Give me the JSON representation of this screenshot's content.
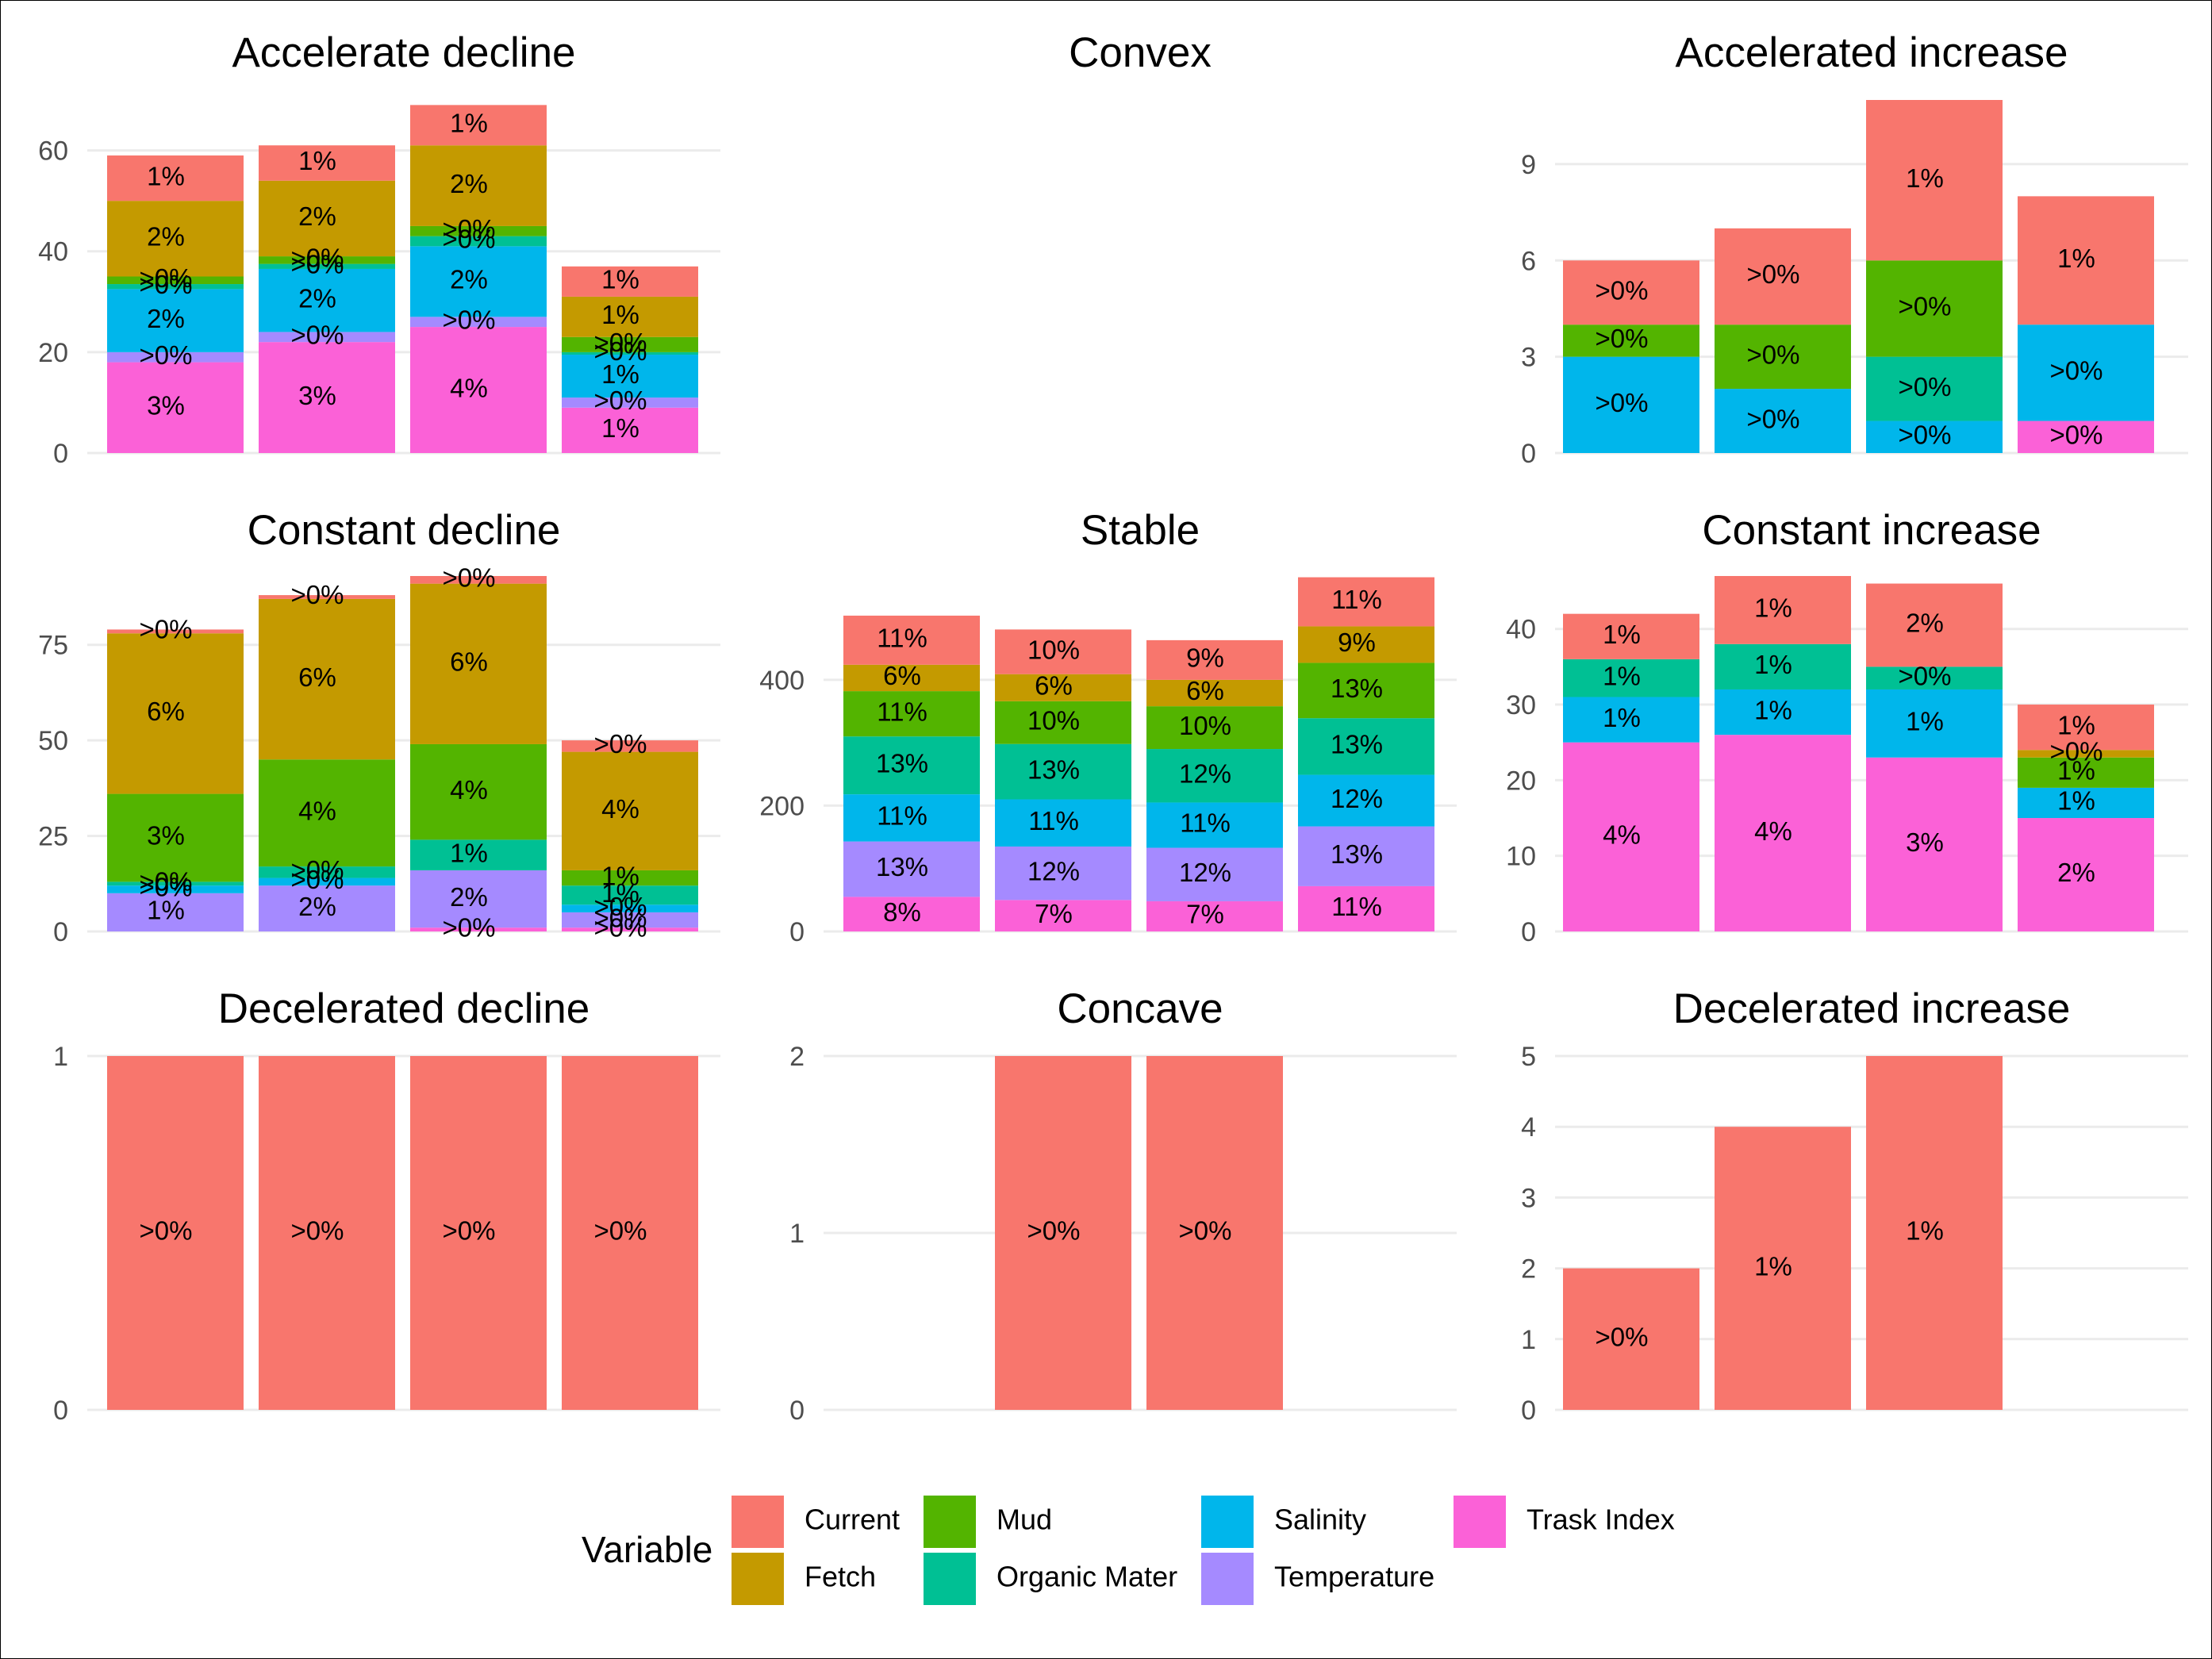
{
  "colors": {
    "Current": "#F8766D",
    "Fetch": "#C49A00",
    "Mud": "#53B400",
    "Organic Mater": "#00C094",
    "Salinity": "#00B6EB",
    "Temperature": "#A58AFF",
    "Trask Index": "#FB61D7"
  },
  "legend": {
    "title": "Variable",
    "items": [
      "Current",
      "Fetch",
      "Mud",
      "Organic Mater",
      "Salinity",
      "Temperature",
      "Trask Index"
    ]
  },
  "chart_data": [
    {
      "type": "bar",
      "stacked": true,
      "title": "Accelerate decline",
      "ylim": [
        0,
        70
      ],
      "yticks": [
        0,
        20,
        40,
        60
      ],
      "grid": true,
      "bars": [
        {
          "segments": [
            {
              "variable": "Trask Index",
              "value": 18,
              "label": "3%"
            },
            {
              "variable": "Temperature",
              "value": 2,
              "label": ">0%"
            },
            {
              "variable": "Salinity",
              "value": 12.5,
              "label": "2%"
            },
            {
              "variable": "Organic Mater",
              "value": 1,
              "label": ">0%"
            },
            {
              "variable": "Mud",
              "value": 1.5,
              "label": ">0%"
            },
            {
              "variable": "Fetch",
              "value": 15,
              "label": "2%"
            },
            {
              "variable": "Current",
              "value": 9,
              "label": "1%"
            }
          ]
        },
        {
          "segments": [
            {
              "variable": "Trask Index",
              "value": 22,
              "label": "3%"
            },
            {
              "variable": "Temperature",
              "value": 2,
              "label": ">0%"
            },
            {
              "variable": "Salinity",
              "value": 12.5,
              "label": "2%"
            },
            {
              "variable": "Organic Mater",
              "value": 1,
              "label": ">0%"
            },
            {
              "variable": "Mud",
              "value": 1.5,
              "label": ">0%"
            },
            {
              "variable": "Fetch",
              "value": 15,
              "label": "2%"
            },
            {
              "variable": "Current",
              "value": 7,
              "label": "1%"
            }
          ]
        },
        {
          "segments": [
            {
              "variable": "Trask Index",
              "value": 25,
              "label": "4%"
            },
            {
              "variable": "Temperature",
              "value": 2,
              "label": ">0%"
            },
            {
              "variable": "Salinity",
              "value": 14,
              "label": "2%"
            },
            {
              "variable": "Organic Mater",
              "value": 2,
              "label": ">0%"
            },
            {
              "variable": "Mud",
              "value": 2,
              "label": ">0%"
            },
            {
              "variable": "Fetch",
              "value": 16,
              "label": "2%"
            },
            {
              "variable": "Current",
              "value": 8,
              "label": "1%"
            }
          ]
        },
        {
          "segments": [
            {
              "variable": "Trask Index",
              "value": 9,
              "label": "1%"
            },
            {
              "variable": "Temperature",
              "value": 2,
              "label": ">0%"
            },
            {
              "variable": "Salinity",
              "value": 8.5,
              "label": "1%"
            },
            {
              "variable": "Organic Mater",
              "value": 0.5,
              "label": ">0%"
            },
            {
              "variable": "Mud",
              "value": 3,
              "label": ">0%"
            },
            {
              "variable": "Fetch",
              "value": 8,
              "label": "1%"
            },
            {
              "variable": "Current",
              "value": 6,
              "label": "1%"
            }
          ]
        }
      ]
    },
    {
      "type": "bar",
      "stacked": true,
      "title": "Convex",
      "ylim": null,
      "yticks": [],
      "grid": false,
      "bars": []
    },
    {
      "type": "bar",
      "stacked": true,
      "title": "Accelerated increase",
      "ylim": [
        0,
        11
      ],
      "yticks": [
        0,
        3,
        6,
        9
      ],
      "grid": true,
      "bars": [
        {
          "segments": [
            {
              "variable": "Salinity",
              "value": 3,
              "label": ">0%"
            },
            {
              "variable": "Mud",
              "value": 1,
              "label": ">0%"
            },
            {
              "variable": "Current",
              "value": 2,
              "label": ">0%"
            }
          ]
        },
        {
          "segments": [
            {
              "variable": "Salinity",
              "value": 2,
              "label": ">0%"
            },
            {
              "variable": "Mud",
              "value": 2,
              "label": ">0%"
            },
            {
              "variable": "Current",
              "value": 3,
              "label": ">0%"
            }
          ]
        },
        {
          "segments": [
            {
              "variable": "Salinity",
              "value": 1,
              "label": ">0%"
            },
            {
              "variable": "Organic Mater",
              "value": 2,
              "label": ">0%"
            },
            {
              "variable": "Mud",
              "value": 3,
              "label": ">0%"
            },
            {
              "variable": "Current",
              "value": 5,
              "label": "1%"
            }
          ]
        },
        {
          "segments": [
            {
              "variable": "Trask Index",
              "value": 1,
              "label": ">0%"
            },
            {
              "variable": "Salinity",
              "value": 3,
              "label": ">0%"
            },
            {
              "variable": "Current",
              "value": 4,
              "label": "1%"
            }
          ]
        }
      ]
    },
    {
      "type": "bar",
      "stacked": true,
      "title": "Constant decline",
      "ylim": [
        0,
        93
      ],
      "yticks": [
        0,
        25,
        50,
        75
      ],
      "grid": true,
      "bars": [
        {
          "segments": [
            {
              "variable": "Temperature",
              "value": 10,
              "label": "1%"
            },
            {
              "variable": "Salinity",
              "value": 2,
              "label": ">0%"
            },
            {
              "variable": "Organic Mater",
              "value": 1,
              "label": ">0%"
            },
            {
              "variable": "Mud",
              "value": 23,
              "label": "3%"
            },
            {
              "variable": "Fetch",
              "value": 42,
              "label": "6%"
            },
            {
              "variable": "Current",
              "value": 1,
              "label": ">0%"
            }
          ]
        },
        {
          "segments": [
            {
              "variable": "Temperature",
              "value": 12,
              "label": "2%"
            },
            {
              "variable": "Salinity",
              "value": 2,
              "label": ">0%"
            },
            {
              "variable": "Organic Mater",
              "value": 3,
              "label": ">0%"
            },
            {
              "variable": "Mud",
              "value": 28,
              "label": "4%"
            },
            {
              "variable": "Fetch",
              "value": 42,
              "label": "6%"
            },
            {
              "variable": "Current",
              "value": 1,
              "label": ">0%"
            }
          ]
        },
        {
          "segments": [
            {
              "variable": "Trask Index",
              "value": 1,
              "label": ">0%"
            },
            {
              "variable": "Temperature",
              "value": 15,
              "label": "2%"
            },
            {
              "variable": "Organic Mater",
              "value": 8,
              "label": "1%"
            },
            {
              "variable": "Mud",
              "value": 25,
              "label": "4%"
            },
            {
              "variable": "Fetch",
              "value": 42,
              "label": "6%"
            },
            {
              "variable": "Current",
              "value": 2,
              "label": ">0%"
            }
          ]
        },
        {
          "segments": [
            {
              "variable": "Trask Index",
              "value": 1,
              "label": ">0%"
            },
            {
              "variable": "Temperature",
              "value": 4,
              "label": ">0%"
            },
            {
              "variable": "Salinity",
              "value": 2,
              "label": ">0%"
            },
            {
              "variable": "Organic Mater",
              "value": 5,
              "label": "1%"
            },
            {
              "variable": "Mud",
              "value": 4,
              "label": "1%"
            },
            {
              "variable": "Fetch",
              "value": 31,
              "label": "4%"
            },
            {
              "variable": "Current",
              "value": 3,
              "label": ">0%"
            }
          ]
        }
      ]
    },
    {
      "type": "bar",
      "stacked": true,
      "title": "Stable",
      "ylim": [
        0,
        565
      ],
      "yticks": [
        0,
        200,
        400
      ],
      "grid": true,
      "bars": [
        {
          "segments": [
            {
              "variable": "Trask Index",
              "value": 55,
              "label": "8%"
            },
            {
              "variable": "Temperature",
              "value": 88,
              "label": "13%"
            },
            {
              "variable": "Salinity",
              "value": 75,
              "label": "11%"
            },
            {
              "variable": "Organic Mater",
              "value": 92,
              "label": "13%"
            },
            {
              "variable": "Mud",
              "value": 72,
              "label": "11%"
            },
            {
              "variable": "Fetch",
              "value": 42,
              "label": "6%"
            },
            {
              "variable": "Current",
              "value": 78,
              "label": "11%"
            }
          ]
        },
        {
          "segments": [
            {
              "variable": "Trask Index",
              "value": 50,
              "label": "7%"
            },
            {
              "variable": "Temperature",
              "value": 85,
              "label": "12%"
            },
            {
              "variable": "Salinity",
              "value": 75,
              "label": "11%"
            },
            {
              "variable": "Organic Mater",
              "value": 88,
              "label": "13%"
            },
            {
              "variable": "Mud",
              "value": 68,
              "label": "10%"
            },
            {
              "variable": "Fetch",
              "value": 43,
              "label": "6%"
            },
            {
              "variable": "Current",
              "value": 71,
              "label": "10%"
            }
          ]
        },
        {
          "segments": [
            {
              "variable": "Trask Index",
              "value": 48,
              "label": "7%"
            },
            {
              "variable": "Temperature",
              "value": 85,
              "label": "12%"
            },
            {
              "variable": "Salinity",
              "value": 72,
              "label": "11%"
            },
            {
              "variable": "Organic Mater",
              "value": 85,
              "label": "12%"
            },
            {
              "variable": "Mud",
              "value": 68,
              "label": "10%"
            },
            {
              "variable": "Fetch",
              "value": 42,
              "label": "6%"
            },
            {
              "variable": "Current",
              "value": 63,
              "label": "9%"
            }
          ]
        },
        {
          "segments": [
            {
              "variable": "Trask Index",
              "value": 72,
              "label": "11%"
            },
            {
              "variable": "Temperature",
              "value": 95,
              "label": "13%"
            },
            {
              "variable": "Salinity",
              "value": 82,
              "label": "12%"
            },
            {
              "variable": "Organic Mater",
              "value": 90,
              "label": "13%"
            },
            {
              "variable": "Mud",
              "value": 88,
              "label": "13%"
            },
            {
              "variable": "Fetch",
              "value": 58,
              "label": "9%"
            },
            {
              "variable": "Current",
              "value": 78,
              "label": "11%"
            }
          ]
        }
      ]
    },
    {
      "type": "bar",
      "stacked": true,
      "title": "Constant increase",
      "ylim": [
        0,
        47
      ],
      "yticks": [
        0,
        10,
        20,
        30,
        40
      ],
      "grid": true,
      "bars": [
        {
          "segments": [
            {
              "variable": "Trask Index",
              "value": 25,
              "label": "4%"
            },
            {
              "variable": "Salinity",
              "value": 6,
              "label": "1%"
            },
            {
              "variable": "Organic Mater",
              "value": 5,
              "label": "1%"
            },
            {
              "variable": "Current",
              "value": 6,
              "label": "1%"
            }
          ]
        },
        {
          "segments": [
            {
              "variable": "Trask Index",
              "value": 26,
              "label": "4%"
            },
            {
              "variable": "Salinity",
              "value": 6,
              "label": "1%"
            },
            {
              "variable": "Organic Mater",
              "value": 6,
              "label": "1%"
            },
            {
              "variable": "Current",
              "value": 9,
              "label": "1%"
            }
          ]
        },
        {
          "segments": [
            {
              "variable": "Trask Index",
              "value": 23,
              "label": "3%"
            },
            {
              "variable": "Salinity",
              "value": 9,
              "label": "1%"
            },
            {
              "variable": "Organic Mater",
              "value": 3,
              "label": ">0%"
            },
            {
              "variable": "Current",
              "value": 11,
              "label": "2%"
            }
          ]
        },
        {
          "segments": [
            {
              "variable": "Trask Index",
              "value": 15,
              "label": "2%"
            },
            {
              "variable": "Salinity",
              "value": 4,
              "label": "1%"
            },
            {
              "variable": "Mud",
              "value": 4,
              "label": "1%"
            },
            {
              "variable": "Fetch",
              "value": 1,
              "label": ">0%"
            },
            {
              "variable": "Current",
              "value": 6,
              "label": "1%"
            }
          ]
        }
      ]
    },
    {
      "type": "bar",
      "stacked": true,
      "title": "Decelerated decline",
      "ylim": [
        0,
        1
      ],
      "yticks": [
        0,
        1
      ],
      "grid": true,
      "bars": [
        {
          "segments": [
            {
              "variable": "Current",
              "value": 1,
              "label": ">0%"
            }
          ]
        },
        {
          "segments": [
            {
              "variable": "Current",
              "value": 1,
              "label": ">0%"
            }
          ]
        },
        {
          "segments": [
            {
              "variable": "Current",
              "value": 1,
              "label": ">0%"
            }
          ]
        },
        {
          "segments": [
            {
              "variable": "Current",
              "value": 1,
              "label": ">0%"
            }
          ]
        }
      ]
    },
    {
      "type": "bar",
      "stacked": true,
      "title": "Concave",
      "ylim": [
        0,
        2
      ],
      "yticks": [
        0,
        1,
        2
      ],
      "grid": true,
      "bars": [
        {
          "segments": []
        },
        {
          "segments": [
            {
              "variable": "Current",
              "value": 2,
              "label": ">0%"
            }
          ]
        },
        {
          "segments": [
            {
              "variable": "Current",
              "value": 2,
              "label": ">0%"
            }
          ]
        },
        {
          "segments": []
        }
      ]
    },
    {
      "type": "bar",
      "stacked": true,
      "title": "Decelerated increase",
      "ylim": [
        0,
        5
      ],
      "yticks": [
        0,
        1,
        2,
        3,
        4,
        5
      ],
      "grid": true,
      "bars": [
        {
          "segments": [
            {
              "variable": "Current",
              "value": 2,
              "label": ">0%"
            }
          ]
        },
        {
          "segments": [
            {
              "variable": "Current",
              "value": 4,
              "label": "1%"
            }
          ]
        },
        {
          "segments": [
            {
              "variable": "Current",
              "value": 5,
              "label": "1%"
            }
          ]
        },
        {
          "segments": []
        }
      ]
    }
  ]
}
